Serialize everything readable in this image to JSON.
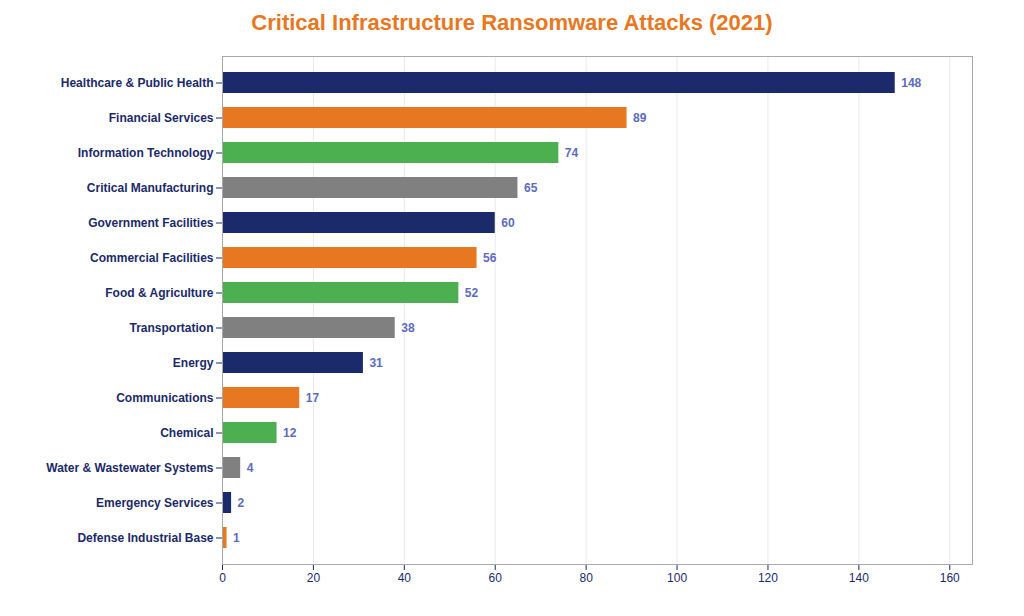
{
  "chart_data": {
    "type": "bar",
    "orientation": "horizontal",
    "title": "Critical Infrastructure Ransomware Attacks (2021)",
    "categories": [
      "Healthcare & Public Health",
      "Financial Services",
      "Information Technology",
      "Critical Manufacturing",
      "Government Facilities",
      "Commercial Facilities",
      "Food & Agriculture",
      "Transportation",
      "Energy",
      "Communications",
      "Chemical",
      "Water & Wastewater Systems",
      "Emergency Services",
      "Defense Industrial Base"
    ],
    "values": [
      148,
      89,
      74,
      65,
      60,
      56,
      52,
      38,
      31,
      17,
      12,
      4,
      2,
      1
    ],
    "colors": [
      "#1B2A6B",
      "#E87722",
      "#4CAF50",
      "#808080",
      "#1B2A6B",
      "#E87722",
      "#4CAF50",
      "#808080",
      "#1B2A6B",
      "#E87722",
      "#4CAF50",
      "#808080",
      "#1B2A6B",
      "#E87722"
    ],
    "xlim": [
      0,
      165
    ],
    "xticks": [
      0,
      20,
      40,
      60,
      80,
      100,
      120,
      140,
      160
    ],
    "grid": true,
    "data_labels": true
  }
}
